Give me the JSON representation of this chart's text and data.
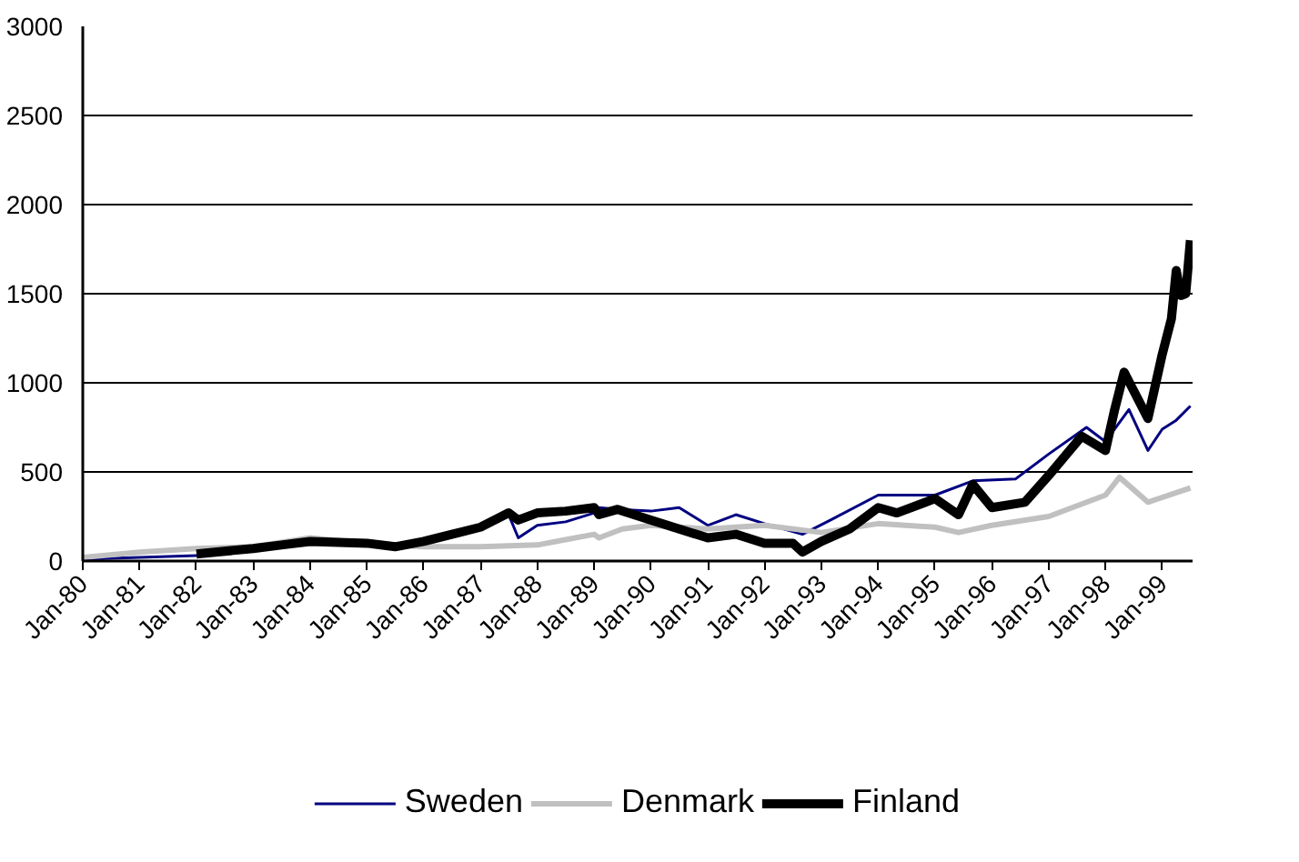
{
  "chart_data": {
    "type": "line",
    "xlim": [
      "1980-01",
      "1999-07-15"
    ],
    "xticks": [
      {
        "value": "1980-01",
        "label": "Jan-80"
      },
      {
        "value": "1981-01",
        "label": "Jan-81"
      },
      {
        "value": "1982-01",
        "label": "Jan-82"
      },
      {
        "value": "1983-01",
        "label": "Jan-83"
      },
      {
        "value": "1984-01",
        "label": "Jan-84"
      },
      {
        "value": "1985-01",
        "label": "Jan-85"
      },
      {
        "value": "1986-01",
        "label": "Jan-86"
      },
      {
        "value": "1987-01",
        "label": "Jan-87"
      },
      {
        "value": "1988-01",
        "label": "Jan-88"
      },
      {
        "value": "1989-01",
        "label": "Jan-89"
      },
      {
        "value": "1990-01",
        "label": "Jan-90"
      },
      {
        "value": "1991-01",
        "label": "Jan-91"
      },
      {
        "value": "1992-01",
        "label": "Jan-92"
      },
      {
        "value": "1993-01",
        "label": "Jan-93"
      },
      {
        "value": "1994-01",
        "label": "Jan-94"
      },
      {
        "value": "1995-01",
        "label": "Jan-95"
      },
      {
        "value": "1996-01",
        "label": "Jan-96"
      },
      {
        "value": "1997-01",
        "label": "Jan-97"
      },
      {
        "value": "1998-01",
        "label": "Jan-98"
      },
      {
        "value": "1999-01",
        "label": "Jan-99"
      }
    ],
    "ylim": [
      0,
      3000
    ],
    "yticks": [
      0,
      500,
      1000,
      1500,
      2000,
      2500,
      3000
    ],
    "grid": "y",
    "legend": "bottom",
    "line_style": "solid",
    "series": [
      {
        "name": "Sweden",
        "color": "#000080",
        "x": [
          "1980-01",
          "1981-01",
          "1982-01",
          "1983-01",
          "1984-01",
          "1985-01",
          "1986-01",
          "1986-07",
          "1987-01",
          "1987-07",
          "1987-09",
          "1988-01",
          "1988-07",
          "1989-01",
          "1989-02",
          "1989-06",
          "1990-01",
          "1990-07",
          "1991-01",
          "1991-07",
          "1992-01",
          "1992-09",
          "1993-03",
          "1994-01",
          "1995-01",
          "1995-09",
          "1996-06",
          "1997-01",
          "1997-09",
          "1998-01",
          "1998-06",
          "1998-10",
          "1999-01",
          "1999-04",
          "1999-07"
        ],
        "values": [
          10,
          20,
          30,
          70,
          100,
          100,
          100,
          150,
          190,
          260,
          130,
          200,
          220,
          270,
          300,
          290,
          280,
          300,
          200,
          260,
          210,
          150,
          230,
          370,
          370,
          450,
          460,
          600,
          750,
          670,
          850,
          620,
          740,
          790,
          870
        ]
      },
      {
        "name": "Denmark",
        "color": "#c0c0c0",
        "x": [
          "1980-01",
          "1981-01",
          "1982-01",
          "1983-01",
          "1984-01",
          "1985-01",
          "1986-01",
          "1987-01",
          "1988-01",
          "1988-07",
          "1989-01",
          "1989-02",
          "1989-07",
          "1990-01",
          "1991-01",
          "1992-01",
          "1993-01",
          "1994-01",
          "1995-01",
          "1995-06",
          "1996-01",
          "1997-01",
          "1998-01",
          "1998-04",
          "1998-10",
          "1999-07"
        ],
        "values": [
          20,
          50,
          70,
          80,
          130,
          100,
          80,
          80,
          90,
          120,
          150,
          130,
          180,
          200,
          180,
          200,
          160,
          210,
          190,
          160,
          200,
          250,
          370,
          470,
          330,
          410
        ]
      },
      {
        "name": "Finland",
        "color": "#000000",
        "x": [
          "1982-01",
          "1983-01",
          "1983-07",
          "1984-01",
          "1985-01",
          "1985-07",
          "1986-01",
          "1986-07",
          "1987-01",
          "1987-07",
          "1987-09",
          "1988-01",
          "1988-07",
          "1989-01",
          "1989-02",
          "1989-06",
          "1990-01",
          "1990-07",
          "1991-01",
          "1991-07",
          "1992-01",
          "1992-07",
          "1992-09",
          "1993-01",
          "1993-07",
          "1994-01",
          "1994-05",
          "1995-01",
          "1995-06",
          "1995-09",
          "1996-01",
          "1996-08",
          "1997-01",
          "1997-08",
          "1998-01",
          "1998-03",
          "1998-05",
          "1998-10",
          "1999-01",
          "1999-03",
          "1999-04",
          "1999-05",
          "1999-06",
          "1999-07"
        ],
        "values": [
          40,
          70,
          90,
          110,
          100,
          80,
          110,
          150,
          190,
          270,
          230,
          270,
          280,
          300,
          260,
          290,
          230,
          180,
          130,
          150,
          100,
          100,
          50,
          110,
          180,
          300,
          270,
          350,
          260,
          430,
          300,
          330,
          480,
          700,
          620,
          850,
          1060,
          800,
          1160,
          1360,
          1630,
          1490,
          1500,
          1800
        ]
      }
    ]
  }
}
